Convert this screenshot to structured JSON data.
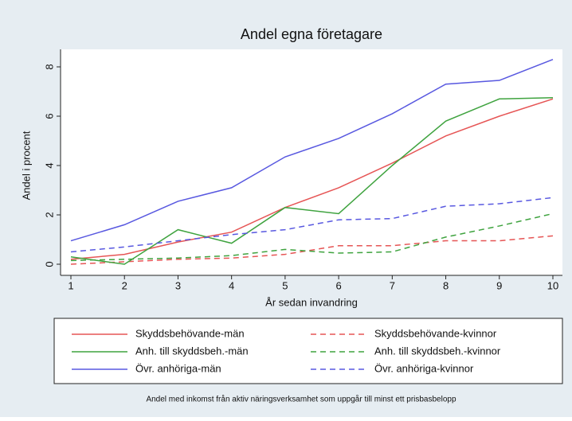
{
  "chart_data": {
    "type": "line",
    "title": "Andel egna företagare",
    "y_label": "Andel i procent",
    "x_label": "År sedan invandring",
    "note": "Andel med inkomst från aktiv näringsverksamhet som uppgår till minst ett prisbasbelopp",
    "x": [
      1,
      2,
      3,
      4,
      5,
      6,
      7,
      8,
      9,
      10
    ],
    "xlim": [
      1,
      10
    ],
    "xticks": [
      1,
      2,
      3,
      4,
      5,
      6,
      7,
      8,
      9,
      10
    ],
    "ylim": [
      0,
      8
    ],
    "yticks": [
      0,
      2,
      4,
      6,
      8
    ],
    "grid": false,
    "legend": "bottom",
    "series": [
      {
        "name": "Skyddsbehövande-män",
        "color": "#e65555",
        "style": "solid",
        "values": [
          0.2,
          0.4,
          0.9,
          1.3,
          2.3,
          3.1,
          4.1,
          5.2,
          6.0,
          6.7
        ]
      },
      {
        "name": "Skyddsbehövande-kvinnor",
        "color": "#e65555",
        "style": "dashed",
        "values": [
          0.0,
          0.1,
          0.2,
          0.25,
          0.4,
          0.75,
          0.75,
          0.95,
          0.95,
          1.15
        ]
      },
      {
        "name": "Anh. till skyddsbeh.-män",
        "color": "#3fa33f",
        "style": "solid",
        "values": [
          0.3,
          0.0,
          1.4,
          0.85,
          2.3,
          2.05,
          4.0,
          5.8,
          6.7,
          6.75
        ]
      },
      {
        "name": "Anh. till skyddsbeh.-kvinnor",
        "color": "#3fa33f",
        "style": "dashed",
        "values": [
          0.15,
          0.2,
          0.25,
          0.35,
          0.6,
          0.45,
          0.5,
          1.1,
          1.55,
          2.05
        ]
      },
      {
        "name": "Övr. anhöriga-män",
        "color": "#5858e0",
        "style": "solid",
        "values": [
          0.95,
          1.6,
          2.55,
          3.1,
          4.35,
          5.1,
          6.1,
          7.3,
          7.45,
          8.3
        ]
      },
      {
        "name": "Övr. anhöriga-kvinnor",
        "color": "#5858e0",
        "style": "dashed",
        "values": [
          0.5,
          0.7,
          0.95,
          1.2,
          1.4,
          1.8,
          1.85,
          2.35,
          2.45,
          2.7
        ]
      }
    ]
  }
}
